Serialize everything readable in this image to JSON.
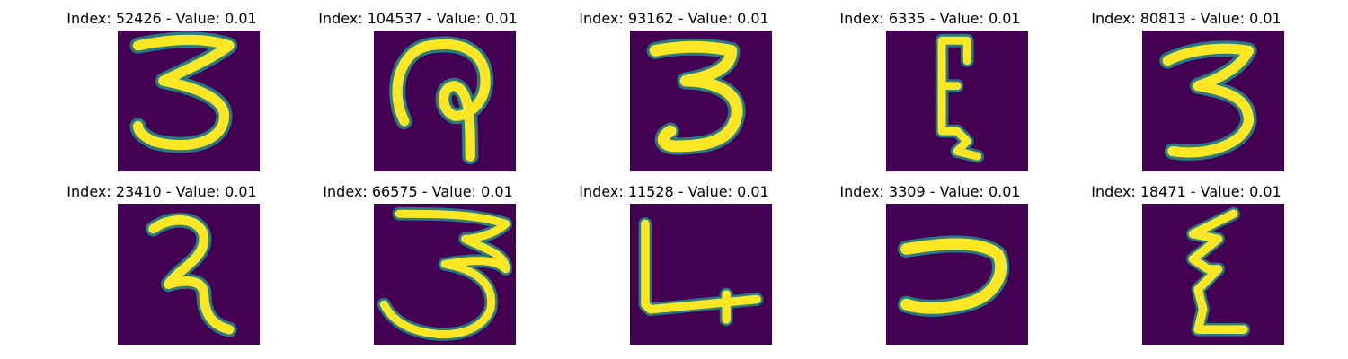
{
  "panels": [
    {
      "title": "Index: 52426 - Value: 0.01"
    },
    {
      "title": "Index: 104537 - Value: 0.01"
    },
    {
      "title": "Index: 93162 - Value: 0.01"
    },
    {
      "title": "Index: 6335 - Value: 0.01"
    },
    {
      "title": "Index: 80813 - Value: 0.01"
    },
    {
      "title": "Index: 23410 - Value: 0.01"
    },
    {
      "title": "Index: 66575 - Value: 0.01"
    },
    {
      "title": "Index: 11528 - Value: 0.01"
    },
    {
      "title": "Index: 3309 - Value: 0.01"
    },
    {
      "title": "Index: 18471 - Value: 0.01"
    }
  ],
  "colors": {
    "background": "#440154",
    "stroke": "#fde725",
    "edge": "#21908d"
  }
}
